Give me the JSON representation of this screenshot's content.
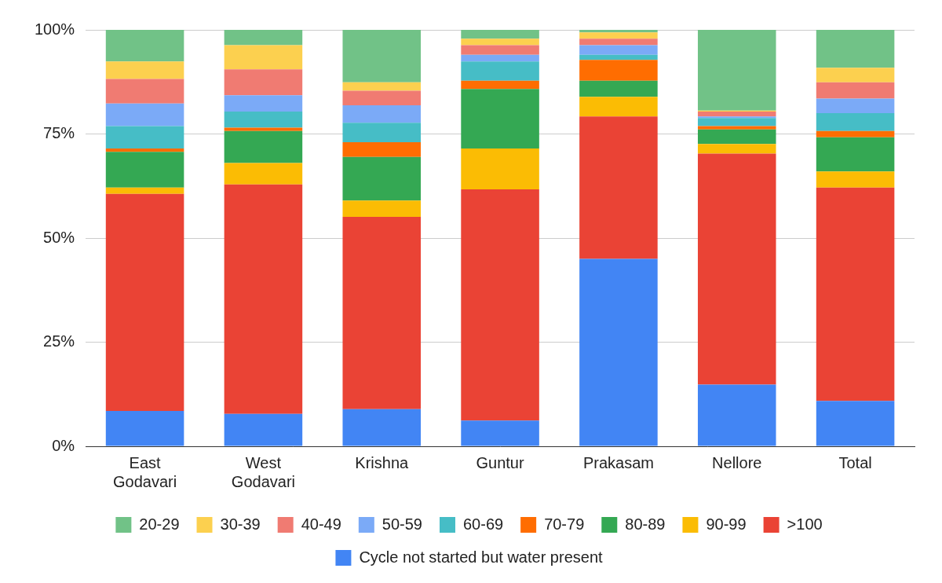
{
  "chart_data": {
    "type": "bar",
    "stacked": true,
    "grid": true,
    "legend": "bottom",
    "categories": [
      "East Godavari",
      "West Godavari",
      "Krishna",
      "Guntur",
      "Prakasam",
      "Nellore",
      "Total"
    ],
    "ylim": [
      0,
      100
    ],
    "yticks": [
      {
        "value": 0,
        "label": "0%"
      },
      {
        "value": 25,
        "label": "25%"
      },
      {
        "value": 50,
        "label": "50%"
      },
      {
        "value": 75,
        "label": "75%"
      },
      {
        "value": 100,
        "label": "100%"
      }
    ],
    "series": [
      {
        "name": "Cycle not started but water present",
        "color": "#4285f4",
        "values": [
          8.5,
          7.8,
          8.9,
          6.2,
          45.0,
          14.8,
          10.9
        ]
      },
      {
        "name": ">100",
        "color": "#ea4335",
        "values": [
          52.1,
          55.1,
          46.2,
          55.5,
          34.2,
          55.5,
          51.2
        ]
      },
      {
        "name": "90-99",
        "color": "#fbbc04",
        "values": [
          1.5,
          5.1,
          3.9,
          9.8,
          4.7,
          2.3,
          3.9
        ]
      },
      {
        "name": "80-89",
        "color": "#34a853",
        "values": [
          8.6,
          7.7,
          10.5,
          14.3,
          3.9,
          3.5,
          8.2
        ]
      },
      {
        "name": "70-79",
        "color": "#ff6d01",
        "values": [
          0.8,
          0.8,
          3.5,
          2.0,
          5.0,
          0.8,
          1.5
        ]
      },
      {
        "name": "60-69",
        "color": "#46bdc6",
        "values": [
          5.4,
          3.9,
          4.7,
          4.6,
          1.2,
          1.9,
          4.3
        ]
      },
      {
        "name": "50-59",
        "color": "#7baaf7",
        "values": [
          5.4,
          3.9,
          4.2,
          1.6,
          2.3,
          0.4,
          3.5
        ]
      },
      {
        "name": "40-49",
        "color": "#f07b72",
        "values": [
          5.9,
          6.2,
          3.5,
          2.3,
          1.6,
          1.2,
          3.9
        ]
      },
      {
        "name": "30-39",
        "color": "#fcd04f",
        "values": [
          4.2,
          5.8,
          2.0,
          1.6,
          1.5,
          0.2,
          3.5
        ]
      },
      {
        "name": "20-29",
        "color": "#71c287",
        "values": [
          7.6,
          3.7,
          12.6,
          2.1,
          0.6,
          19.4,
          9.1
        ]
      }
    ]
  }
}
